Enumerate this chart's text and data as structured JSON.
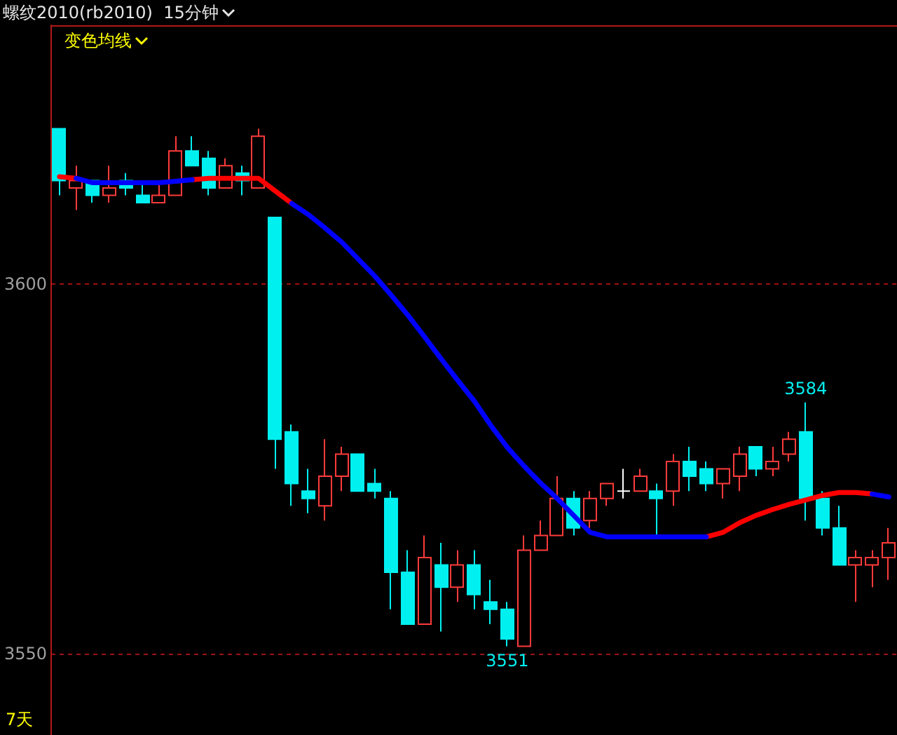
{
  "chart_data": {
    "type": "candlestick",
    "title": "螺纹2010(rb2010)  15分钟",
    "subtitle": "变色均线",
    "categories": [
      null,
      null,
      null,
      null,
      null,
      null,
      null,
      null,
      null,
      null,
      null,
      null,
      null,
      null,
      null,
      null,
      null,
      null,
      null,
      null,
      null,
      null,
      null,
      null,
      null,
      null,
      null,
      null,
      null,
      null,
      null,
      null,
      null,
      null,
      null,
      null,
      null,
      null,
      null,
      null,
      null,
      null,
      null,
      null,
      null,
      null,
      null,
      null,
      null,
      null,
      null
    ],
    "ohlc": [
      [
        3621,
        3621,
        3612,
        3614
      ],
      [
        3613,
        3616,
        3610,
        3614
      ],
      [
        3614,
        3614,
        3611,
        3612
      ],
      [
        3612,
        3616,
        3611,
        3613
      ],
      [
        3614,
        3615,
        3612,
        3613
      ],
      [
        3612,
        3614,
        3611,
        3611
      ],
      [
        3611,
        3614,
        3611,
        3612
      ],
      [
        3612,
        3620,
        3612,
        3618
      ],
      [
        3618,
        3620,
        3616,
        3616
      ],
      [
        3617,
        3618,
        3612,
        3613
      ],
      [
        3613,
        3617,
        3613,
        3616
      ],
      [
        3615,
        3616,
        3612,
        3614
      ],
      [
        3613,
        3621,
        3613,
        3620
      ],
      [
        3609,
        3609,
        3575,
        3579
      ],
      [
        3580,
        3581,
        3570,
        3573
      ],
      [
        3572,
        3575,
        3569,
        3571
      ],
      [
        3570,
        3579,
        3568,
        3574
      ],
      [
        3574,
        3578,
        3572,
        3577
      ],
      [
        3577,
        3577,
        3572,
        3572
      ],
      [
        3573,
        3575,
        3571,
        3572
      ],
      [
        3571,
        3572,
        3556,
        3561
      ],
      [
        3561,
        3564,
        3554,
        3554
      ],
      [
        3554,
        3566,
        3554,
        3563
      ],
      [
        3562,
        3565,
        3553,
        3559
      ],
      [
        3559,
        3564,
        3557,
        3562
      ],
      [
        3562,
        3564,
        3556,
        3558
      ],
      [
        3557,
        3560,
        3554,
        3556
      ],
      [
        3556,
        3557,
        3551,
        3552
      ],
      [
        3551,
        3566,
        3551,
        3564
      ],
      [
        3564,
        3568,
        3564,
        3566
      ],
      [
        3566,
        3574,
        3566,
        3571
      ],
      [
        3571,
        3572,
        3566,
        3567
      ],
      [
        3568,
        3572,
        3567,
        3571
      ],
      [
        3571,
        3573,
        3570,
        3573
      ],
      [
        3572,
        3575,
        3571,
        3572
      ],
      [
        3572,
        3575,
        3572,
        3574
      ],
      [
        3572,
        3573,
        3566,
        3571
      ],
      [
        3572,
        3577,
        3570,
        3576
      ],
      [
        3576,
        3578,
        3572,
        3574
      ],
      [
        3575,
        3576,
        3572,
        3573
      ],
      [
        3573,
        3575,
        3571,
        3575
      ],
      [
        3574,
        3578,
        3572,
        3577
      ],
      [
        3578,
        3578,
        3574,
        3575
      ],
      [
        3575,
        3578,
        3574,
        3576
      ],
      [
        3577,
        3580,
        3576,
        3579
      ],
      [
        3580,
        3584,
        3568,
        3571
      ],
      [
        3571,
        3572,
        3566,
        3567
      ],
      [
        3567,
        3570,
        3562,
        3562
      ],
      [
        3562,
        3564,
        3557,
        3563
      ],
      [
        3562,
        3564,
        3559,
        3563
      ],
      [
        3563,
        3567,
        3560,
        3565
      ]
    ],
    "colors": [
      "#00f0f0",
      "#ff3b3b",
      "#00f0f0",
      "#ff3b3b",
      "#00f0f0",
      "#00f0f0",
      "#ff3b3b",
      "#ff3b3b",
      "#00f0f0",
      "#00f0f0",
      "#ff3b3b",
      "#00f0f0",
      "#ff3b3b",
      "#00f0f0",
      "#00f0f0",
      "#00f0f0",
      "#ff3b3b",
      "#ff3b3b",
      "#00f0f0",
      "#00f0f0",
      "#00f0f0",
      "#00f0f0",
      "#ff3b3b",
      "#00f0f0",
      "#ff3b3b",
      "#00f0f0",
      "#00f0f0",
      "#00f0f0",
      "#ff3b3b",
      "#ff3b3b",
      "#ff3b3b",
      "#00f0f0",
      "#ff3b3b",
      "#ff3b3b",
      "#ffffff",
      "#ff3b3b",
      "#00f0f0",
      "#ff3b3b",
      "#00f0f0",
      "#00f0f0",
      "#ff3b3b",
      "#ff3b3b",
      "#00f0f0",
      "#ff3b3b",
      "#ff3b3b",
      "#00f0f0",
      "#00f0f0",
      "#00f0f0",
      "#ff3b3b",
      "#ff3b3b",
      "#ff3b3b"
    ],
    "series": [
      {
        "type": "line",
        "color": "#ff0000",
        "values": [
          3614.5,
          3614.3,
          null,
          null,
          null,
          null,
          null,
          null,
          3614.1,
          3614.3,
          3614.3,
          3614.3,
          3614.3,
          3612.6,
          3610.9,
          null,
          null,
          null,
          null,
          null,
          null,
          null,
          null,
          null,
          null,
          null,
          null,
          null,
          null,
          null,
          null,
          null,
          null,
          null,
          null,
          null,
          null,
          null,
          null,
          3565.8,
          3566.4,
          3567.7,
          3568.7,
          3569.5,
          3570.2,
          3570.8,
          3571.4,
          3571.8,
          3571.8,
          3571.6,
          null
        ]
      },
      {
        "type": "line",
        "color": "#0000ff",
        "values": [
          null,
          3614.3,
          3613.7,
          3613.7,
          3613.7,
          3613.7,
          3613.7,
          3613.9,
          3614.1,
          null,
          null,
          null,
          null,
          null,
          3610.9,
          3609.4,
          3607.6,
          3605.7,
          3603.4,
          3601.1,
          3598.5,
          3595.8,
          3592.9,
          3589.9,
          3587.0,
          3584.2,
          3580.9,
          3577.9,
          3575.4,
          3573.1,
          3571.0,
          3568.7,
          3566.4,
          3565.8,
          3565.8,
          3565.8,
          3565.8,
          3565.8,
          3565.8,
          3565.8,
          null,
          null,
          null,
          null,
          null,
          null,
          null,
          null,
          null,
          3571.6,
          3571.2
        ]
      }
    ],
    "ylim": [
      3539,
      3635
    ],
    "yticks": [
      3550,
      3600
    ],
    "grid": "y",
    "tick_labels": "y",
    "marker": "none",
    "annotations": [
      {
        "text": "3584",
        "y": 3584
      },
      {
        "text": "3551",
        "y": 3551
      },
      "7天"
    ]
  }
}
